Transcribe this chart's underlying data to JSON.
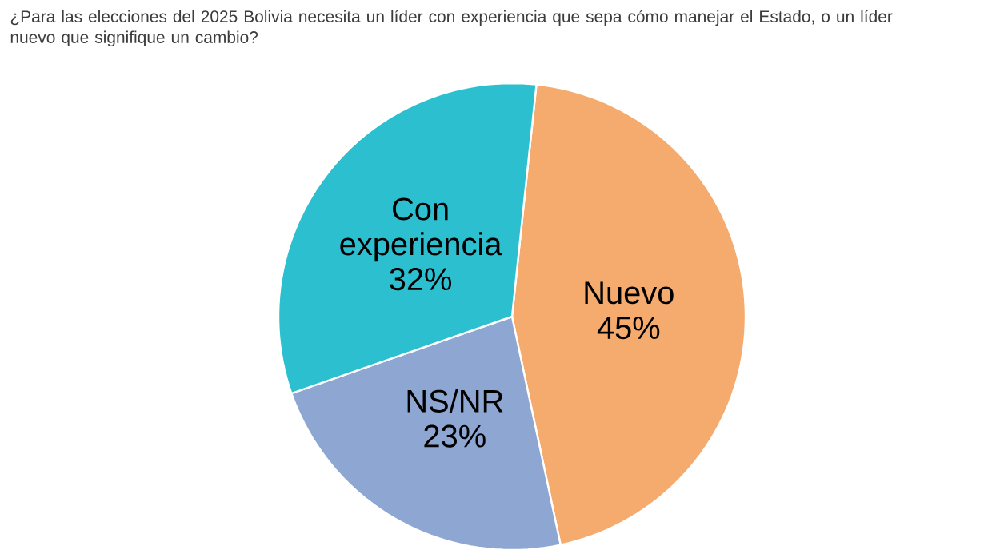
{
  "chart_data": {
    "type": "pie",
    "title": "¿Para las elecciones del 2025 Bolivia necesita un líder con experiencia que sepa cómo manejar el Estado, o un líder nuevo que signifique un cambio?",
    "categories": [
      "Nuevo",
      "NS/NR",
      "Con experiencia"
    ],
    "values": [
      45,
      23,
      32
    ],
    "value_labels": [
      "45%",
      "23%",
      "32%"
    ],
    "colors": [
      "#f5aa6e",
      "#8ea6d2",
      "#2cbfd0"
    ]
  }
}
